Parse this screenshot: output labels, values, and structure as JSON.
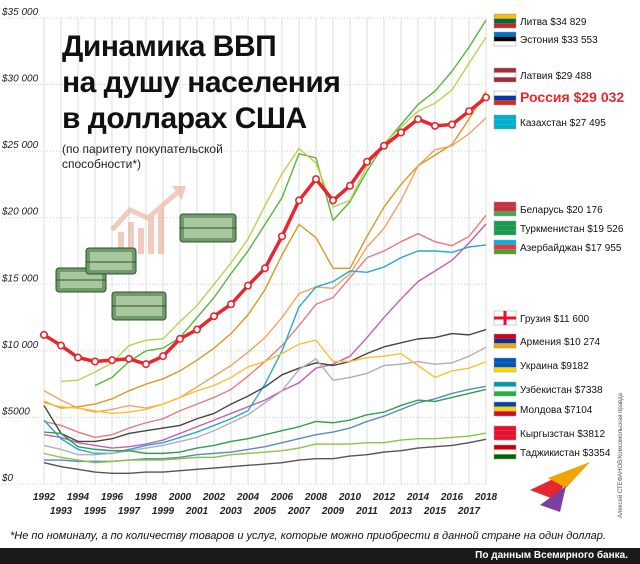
{
  "chart_data": {
    "type": "line",
    "title_lines": [
      "Динамика ВВП",
      "на душу населения",
      "в долларах США"
    ],
    "subtitle_lines": [
      "(по паритету покупательской",
      "способности*)"
    ],
    "x": [
      1992,
      1993,
      1994,
      1995,
      1996,
      1997,
      1998,
      1999,
      2000,
      2001,
      2002,
      2003,
      2004,
      2005,
      2006,
      2007,
      2008,
      2009,
      2010,
      2011,
      2012,
      2013,
      2014,
      2015,
      2016,
      2017,
      2018
    ],
    "x_tick_labels_top": [
      "1992",
      "1994",
      "1996",
      "1998",
      "2000",
      "2002",
      "2004",
      "2006",
      "2008",
      "2010",
      "2012",
      "2014",
      "2016",
      "2018"
    ],
    "x_tick_labels_bottom": [
      "1993",
      "1995",
      "1997",
      "1999",
      "2001",
      "2003",
      "2005",
      "2007",
      "2009",
      "2011",
      "2013",
      "2015",
      "2017"
    ],
    "y_tick_labels": [
      "$0",
      "$5000",
      "$10 000",
      "$15 000",
      "$20 000",
      "$25 000",
      "$30 000",
      "$35 000"
    ],
    "ylim": [
      0,
      35000
    ],
    "grid": true,
    "series": [
      {
        "name": "Литва",
        "label": "Литва $34 829",
        "color": "#59b53a",
        "highlight": false,
        "start": 1995,
        "values": [
          null,
          null,
          null,
          7400,
          8000,
          9200,
          10000,
          10200,
          11000,
          12500,
          14000,
          15800,
          17500,
          19500,
          21500,
          24800,
          24500,
          19800,
          21200,
          23500,
          25500,
          27000,
          28500,
          29500,
          31000,
          32800,
          34829
        ]
      },
      {
        "name": "Эстония",
        "label": "Эстония $33 553",
        "color": "#b8d34a",
        "highlight": false,
        "start": 1993,
        "values": [
          null,
          7700,
          7800,
          8400,
          9100,
          10400,
          10800,
          10900,
          12200,
          13400,
          15000,
          16600,
          18400,
          20900,
          23300,
          25200,
          24100,
          20800,
          21300,
          23900,
          25600,
          26800,
          28000,
          28600,
          29600,
          31600,
          33553
        ]
      },
      {
        "name": "Латвия",
        "label": "Латвия $29 488",
        "color": "#d79a1e",
        "highlight": false,
        "start": 1992,
        "values": [
          6200,
          5700,
          5800,
          6000,
          6400,
          7000,
          7500,
          7900,
          8500,
          9300,
          10200,
          11300,
          12700,
          14600,
          17200,
          19500,
          18500,
          16200,
          16200,
          18600,
          20800,
          22500,
          23900,
          24700,
          25500,
          27400,
          29488
        ]
      },
      {
        "name": "Россия",
        "label": "Россия $29 032",
        "color": "#e8262d",
        "highlight": true,
        "start": 1992,
        "values": [
          11200,
          10400,
          9500,
          9200,
          9300,
          9400,
          9000,
          9600,
          10900,
          11600,
          12600,
          13500,
          14900,
          16200,
          18600,
          21300,
          22900,
          21300,
          22400,
          24200,
          25400,
          26400,
          27400,
          26900,
          27000,
          28000,
          29032
        ]
      },
      {
        "name": "Казахстан",
        "label": "Казахстан $27 495",
        "color": "#f4a261",
        "highlight": false,
        "start": 1992,
        "values": [
          7000,
          6300,
          5700,
          5400,
          5600,
          5900,
          5700,
          6000,
          6500,
          7300,
          8100,
          8900,
          9900,
          11000,
          12500,
          14300,
          14800,
          14700,
          15800,
          17800,
          19200,
          21300,
          23900,
          25100,
          25400,
          26300,
          27495
        ]
      },
      {
        "name": "Беларусь",
        "label": "Беларусь $20 176",
        "color": "#e97b7b",
        "highlight": false,
        "start": 1992,
        "values": [
          4700,
          4400,
          3900,
          3500,
          3700,
          4200,
          4600,
          4900,
          5500,
          6000,
          6500,
          7100,
          8100,
          9200,
          10400,
          11900,
          13500,
          14000,
          15500,
          17000,
          17500,
          18200,
          18800,
          18200,
          17900,
          18600,
          20176
        ]
      },
      {
        "name": "Туркменистан",
        "label": "Туркменистан $19 526",
        "color": "#c95bb5",
        "highlight": false,
        "start": 1992,
        "values": [
          3700,
          3500,
          3100,
          2900,
          2700,
          2800,
          3000,
          3300,
          3800,
          4300,
          4800,
          5300,
          5800,
          6300,
          7000,
          7600,
          8700,
          9000,
          9600,
          11000,
          12500,
          13900,
          15200,
          16000,
          16800,
          18100,
          19526
        ]
      },
      {
        "name": "Азербайджан",
        "label": "Азербайджан $17 955",
        "color": "#24a9d6",
        "highlight": false,
        "start": 1992,
        "values": [
          4800,
          3400,
          2600,
          2300,
          2300,
          2600,
          2900,
          3100,
          3500,
          3900,
          4400,
          4900,
          5500,
          7500,
          10000,
          13300,
          14800,
          15200,
          16000,
          15900,
          16300,
          17000,
          17500,
          17500,
          17400,
          17800,
          17955
        ]
      },
      {
        "name": "Грузия",
        "label": "Грузия $11 600",
        "color": "#444444",
        "highlight": false,
        "start": 1992,
        "values": [
          5900,
          3800,
          3200,
          3200,
          3400,
          3800,
          4000,
          4200,
          4400,
          4900,
          5300,
          6000,
          6600,
          7300,
          8200,
          8700,
          9100,
          8900,
          9200,
          9800,
          10300,
          10600,
          10900,
          11000,
          11300,
          11200,
          11600
        ]
      },
      {
        "name": "Армения",
        "label": "Армения $10 274",
        "color": "#b0b0b0",
        "highlight": false,
        "start": 1992,
        "values": [
          2900,
          2600,
          2200,
          2200,
          2300,
          2500,
          2700,
          2900,
          3200,
          3500,
          4000,
          4600,
          5200,
          6100,
          7000,
          8600,
          9400,
          7800,
          8000,
          8300,
          8900,
          9000,
          9200,
          9000,
          9100,
          9600,
          10274
        ]
      },
      {
        "name": "Украина",
        "label": "Украина $9182",
        "color": "#f4c430",
        "highlight": false,
        "start": 1992,
        "values": [
          6100,
          5800,
          5700,
          5500,
          5300,
          5400,
          5600,
          6000,
          6500,
          7000,
          7400,
          8000,
          8800,
          9200,
          9800,
          10500,
          10800,
          9200,
          9200,
          9500,
          9600,
          9800,
          8900,
          8000,
          8500,
          8700,
          9182
        ]
      },
      {
        "name": "Узбекистан",
        "label": "Узбекистан $7338",
        "color": "#5b8ac7",
        "highlight": false,
        "start": 1992,
        "values": [
          1800,
          1800,
          1700,
          1700,
          1700,
          1800,
          1900,
          1900,
          2000,
          2200,
          2300,
          2400,
          2600,
          2800,
          3100,
          3400,
          3700,
          3900,
          4200,
          4700,
          5100,
          5600,
          6100,
          6400,
          6800,
          7100,
          7338
        ]
      },
      {
        "name": "Молдова",
        "label": "Молдова $7104",
        "color": "#2e9e4f",
        "highlight": false,
        "start": 1992,
        "values": [
          3900,
          3800,
          2800,
          2600,
          2500,
          2500,
          2300,
          2300,
          2400,
          2700,
          2900,
          3200,
          3400,
          3700,
          4000,
          4300,
          4700,
          4600,
          4800,
          5200,
          5400,
          5900,
          6300,
          6200,
          6500,
          6800,
          7104
        ]
      },
      {
        "name": "Кыргызстан",
        "label": "Кыргызстан $3812",
        "color": "#8cc63f",
        "highlight": false,
        "start": 1992,
        "values": [
          2300,
          2000,
          1800,
          1600,
          1700,
          1800,
          1800,
          1800,
          1900,
          2000,
          2000,
          2200,
          2300,
          2400,
          2500,
          2700,
          3000,
          3000,
          3000,
          3100,
          3100,
          3300,
          3400,
          3400,
          3500,
          3600,
          3812
        ]
      },
      {
        "name": "Таджикистан",
        "label": "Таджикистан $3354",
        "color": "#555555",
        "highlight": false,
        "start": 1992,
        "values": [
          1600,
          1300,
          1100,
          900,
          800,
          800,
          900,
          900,
          1000,
          1100,
          1200,
          1300,
          1400,
          1500,
          1600,
          1800,
          1900,
          1900,
          2100,
          2200,
          2400,
          2500,
          2700,
          2800,
          2900,
          3100,
          3354
        ]
      }
    ]
  },
  "footnote": "*Не по номиналу, а по количеству товаров и услуг, которые можно приобрести в данной стране на один доллар.",
  "source": "По данным Всемирного банка.",
  "credit": "Алексей СТЕФАНОВ/Комсомольская правда",
  "flag_colors": {
    "Литва": [
      "#fdb913",
      "#006a44",
      "#c1272d"
    ],
    "Эстония": [
      "#0072ce",
      "#000000",
      "#ffffff"
    ],
    "Латвия": [
      "#9e3039",
      "#ffffff",
      "#9e3039"
    ],
    "Россия": [
      "#ffffff",
      "#0039a6",
      "#d52b1e"
    ],
    "Казахстан": [
      "#00afca",
      "#00afca",
      "#00afca"
    ],
    "Беларусь": [
      "#c8313e",
      "#c8313e",
      "#4aa657"
    ],
    "Туркменистан": [
      "#1a9a50",
      "#1a9a50",
      "#1a9a50"
    ],
    "Азербайджан": [
      "#00b5e2",
      "#ef3340",
      "#509e2f"
    ],
    "Грузия": [
      "#ffffff",
      "#ffffff",
      "#ffffff"
    ],
    "Армения": [
      "#d90012",
      "#0033a0",
      "#f2a800"
    ],
    "Украина": [
      "#0057b7",
      "#0057b7",
      "#ffd700"
    ],
    "Узбекистан": [
      "#0099b5",
      "#ffffff",
      "#1eb53a"
    ],
    "Молдова": [
      "#0046ae",
      "#ffd200",
      "#cc092f"
    ],
    "Кыргызстан": [
      "#e8112d",
      "#e8112d",
      "#e8112d"
    ],
    "Таджикистан": [
      "#cc0000",
      "#ffffff",
      "#006600"
    ]
  }
}
